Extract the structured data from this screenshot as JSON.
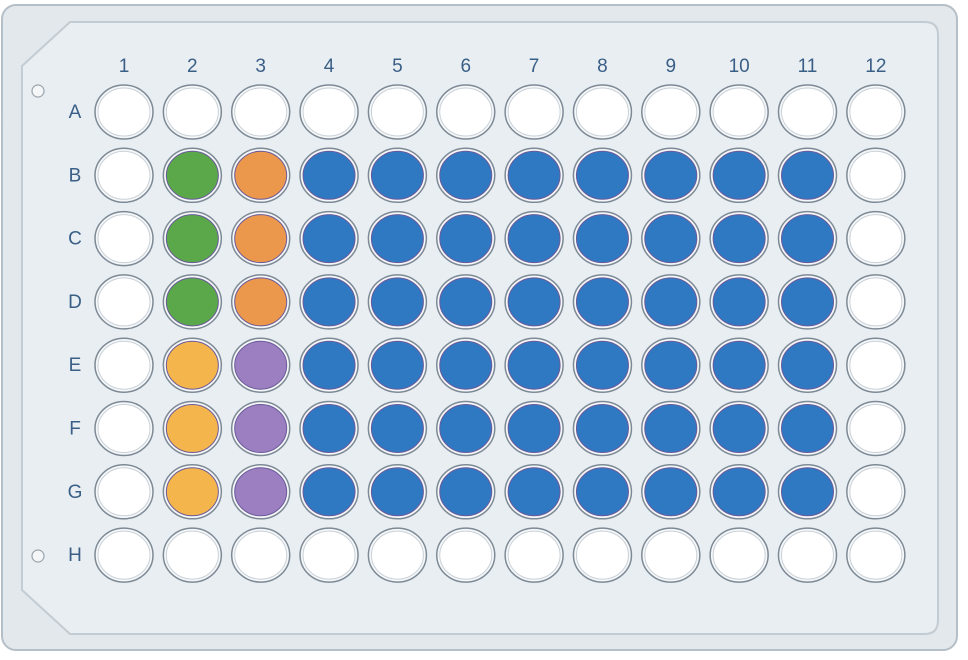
{
  "columns": [
    "1",
    "2",
    "3",
    "4",
    "5",
    "6",
    "7",
    "8",
    "9",
    "10",
    "11",
    "12"
  ],
  "rows": [
    "A",
    "B",
    "C",
    "D",
    "E",
    "F",
    "G",
    "H"
  ]
}
